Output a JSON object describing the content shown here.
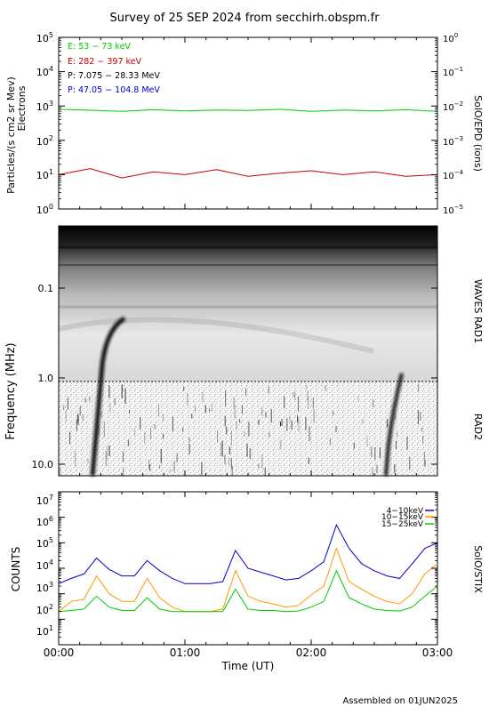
{
  "title": "Survey of 25 SEP 2024 from secchirh.obspm.fr",
  "footer": "Assembled on 01JUN2025",
  "xaxis": {
    "label": "Time (UT)",
    "ticks": [
      "00:00",
      "01:00",
      "02:00",
      "03:00"
    ],
    "range_hours": [
      0,
      3
    ]
  },
  "panels": {
    "epd": {
      "ylabel_left_1": "Particles/(s cm2 sr Mev)",
      "ylabel_left_2": "Electrons",
      "ylabel_right": "SolO/EPD (ions)",
      "left_ticks": [
        {
          "b": "10",
          "e": "5"
        },
        {
          "b": "10",
          "e": "4"
        },
        {
          "b": "10",
          "e": "3"
        },
        {
          "b": "10",
          "e": "2"
        },
        {
          "b": "10",
          "e": "1"
        },
        {
          "b": "10",
          "e": "0"
        }
      ],
      "right_ticks": [
        {
          "b": "10",
          "e": "0"
        },
        {
          "b": "10",
          "e": "−1"
        },
        {
          "b": "10",
          "e": "−2"
        },
        {
          "b": "10",
          "e": "−3"
        },
        {
          "b": "10",
          "e": "−4"
        },
        {
          "b": "10",
          "e": "−5"
        }
      ],
      "legend": [
        {
          "label": "E: 53 − 73 keV",
          "color": "#00cc00"
        },
        {
          "label": "E: 282 − 397 keV",
          "color": "#cc0000"
        },
        {
          "label": "P: 7.075 − 28.33 MeV",
          "color": "#000000"
        },
        {
          "label": "P: 47.05 − 104.8 MeV",
          "color": "#0000cc"
        }
      ]
    },
    "waves": {
      "ylabel": "Frequency (MHz)",
      "label_rad1": "WAVES RAD1",
      "label_rad2": "RAD2",
      "ticks": [
        "0.1",
        "1.0",
        "10.0"
      ]
    },
    "stix": {
      "ylabel": "COUNTS",
      "ylabel_right": "SolO/STIX",
      "ticks": [
        {
          "b": "10",
          "e": "7"
        },
        {
          "b": "10",
          "e": "6"
        },
        {
          "b": "10",
          "e": "5"
        },
        {
          "b": "10",
          "e": "4"
        },
        {
          "b": "10",
          "e": "3"
        },
        {
          "b": "10",
          "e": "2"
        },
        {
          "b": "10",
          "e": "1"
        }
      ],
      "legend": [
        {
          "label": "4−10keV",
          "color": "#0000cc"
        },
        {
          "label": "10−15keV",
          "color": "#ff9900"
        },
        {
          "label": "15−25keV",
          "color": "#00cc00"
        }
      ]
    }
  },
  "chart_data": [
    {
      "type": "line",
      "title": "",
      "ylabel": "Particles/(s cm2 sr Mev) Electrons",
      "y_scale": "log",
      "ylim": [
        1,
        100000
      ],
      "x": [
        0,
        0.25,
        0.5,
        0.75,
        1.0,
        1.25,
        1.5,
        1.75,
        2.0,
        2.25,
        2.5,
        2.75,
        3.0
      ],
      "series": [
        {
          "name": "E: 53 − 73 keV",
          "values": [
            800,
            750,
            700,
            780,
            720,
            760,
            740,
            800,
            700,
            760,
            720,
            780,
            700
          ]
        },
        {
          "name": "E: 282 − 397 keV",
          "values": [
            10,
            15,
            8,
            12,
            10,
            14,
            9,
            11,
            13,
            10,
            12,
            9,
            10
          ]
        }
      ]
    },
    {
      "type": "heatmap",
      "title": "",
      "ylabel": "Frequency (MHz)",
      "y_scale": "log",
      "ylim": [
        0.02,
        14
      ]
    },
    {
      "type": "line",
      "title": "",
      "ylabel": "COUNTS",
      "y_scale": "log",
      "ylim": [
        10,
        10000000
      ],
      "x": [
        0,
        0.1,
        0.2,
        0.3,
        0.4,
        0.5,
        0.6,
        0.7,
        0.8,
        0.9,
        1.0,
        1.1,
        1.2,
        1.3,
        1.4,
        1.5,
        1.6,
        1.7,
        1.8,
        1.9,
        2.0,
        2.1,
        2.2,
        2.3,
        2.4,
        2.5,
        2.6,
        2.7,
        2.8,
        2.9,
        3.0
      ],
      "series": [
        {
          "name": "4−10keV",
          "values": [
            2500,
            4000,
            6000,
            25000,
            9000,
            5000,
            5000,
            20000,
            8000,
            4000,
            2500,
            2500,
            2500,
            3000,
            50000,
            10000,
            7000,
            5000,
            3500,
            4000,
            8000,
            18000,
            500000,
            60000,
            15000,
            8000,
            5000,
            4000,
            15000,
            60000,
            100000
          ]
        },
        {
          "name": "10−15keV",
          "values": [
            200,
            500,
            600,
            5000,
            1000,
            500,
            500,
            4000,
            700,
            300,
            200,
            200,
            200,
            250,
            8000,
            800,
            500,
            400,
            300,
            350,
            900,
            2000,
            60000,
            3000,
            1500,
            800,
            500,
            400,
            1000,
            6000,
            15000
          ]
        },
        {
          "name": "15−25keV",
          "values": [
            200,
            220,
            250,
            800,
            300,
            220,
            220,
            700,
            250,
            200,
            200,
            200,
            200,
            200,
            1500,
            250,
            220,
            220,
            200,
            210,
            300,
            500,
            8000,
            700,
            400,
            250,
            220,
            210,
            300,
            800,
            2000
          ]
        }
      ]
    }
  ]
}
